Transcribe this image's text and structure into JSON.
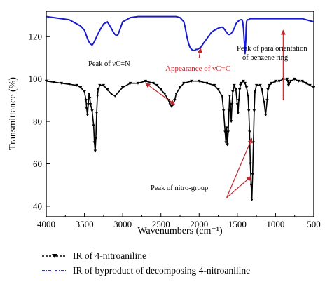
{
  "chart_data": {
    "type": "line",
    "title": "",
    "xlabel": "Wavenumbers (cm⁻¹)",
    "ylabel": "Transmittance (%)",
    "xlim": [
      4000,
      500
    ],
    "ylim": [
      35,
      132
    ],
    "x_reversed": true,
    "x_ticks": [
      4000,
      3500,
      3000,
      2500,
      2000,
      1500,
      1000,
      500
    ],
    "y_ticks": [
      40,
      60,
      80,
      100,
      120
    ],
    "grid": false,
    "legend_placement": "bottom",
    "series": [
      {
        "name": "IR of 4-nitroaniline",
        "color": "#000000",
        "marker": "triangle-down",
        "x": [
          4000,
          3900,
          3800,
          3700,
          3600,
          3550,
          3500,
          3480,
          3470,
          3460,
          3450,
          3440,
          3430,
          3420,
          3400,
          3380,
          3370,
          3360,
          3350,
          3340,
          3330,
          3320,
          3300,
          3250,
          3200,
          3150,
          3100,
          3000,
          2900,
          2800,
          2700,
          2600,
          2550,
          2500,
          2450,
          2400,
          2380,
          2360,
          2340,
          2320,
          2300,
          2250,
          2200,
          2100,
          2000,
          1900,
          1800,
          1750,
          1700,
          1680,
          1660,
          1650,
          1640,
          1630,
          1620,
          1610,
          1600,
          1590,
          1580,
          1570,
          1560,
          1540,
          1520,
          1500,
          1490,
          1480,
          1470,
          1460,
          1450,
          1420,
          1400,
          1380,
          1360,
          1350,
          1340,
          1330,
          1320,
          1310,
          1300,
          1290,
          1280,
          1270,
          1250,
          1200,
          1180,
          1150,
          1130,
          1110,
          1100,
          1080,
          1050,
          1000,
          950,
          900,
          850,
          840,
          830,
          820,
          800,
          750,
          700,
          650,
          600,
          550,
          500
        ],
        "y": [
          99,
          98.5,
          98,
          97.5,
          97,
          96,
          94,
          90,
          86,
          83,
          88,
          93,
          91,
          88,
          85,
          78,
          70,
          66,
          72,
          84,
          92,
          95,
          97,
          97,
          95,
          93,
          92,
          96,
          98,
          98,
          99,
          98,
          97,
          95,
          93,
          90,
          88,
          87,
          88,
          90,
          93,
          96,
          98,
          99,
          99,
          98,
          97,
          95,
          92,
          85,
          75,
          70,
          77,
          69,
          75,
          85,
          92,
          88,
          80,
          88,
          94,
          97,
          95,
          88,
          84,
          90,
          95,
          97,
          98,
          99,
          98,
          96,
          92,
          85,
          75,
          60,
          50,
          43,
          55,
          70,
          85,
          94,
          97,
          97,
          95,
          89,
          83,
          90,
          95,
          97,
          98,
          99,
          99,
          100,
          100,
          99,
          97,
          98,
          99,
          100,
          99,
          99,
          98,
          97,
          96
        ]
      },
      {
        "name": "IR of byproduct of decomposing 4-nitroaniline",
        "color": "#1a1ad0",
        "marker": "none",
        "x": [
          4000,
          3900,
          3800,
          3700,
          3650,
          3600,
          3550,
          3500,
          3480,
          3460,
          3440,
          3420,
          3400,
          3380,
          3360,
          3340,
          3300,
          3250,
          3200,
          3150,
          3120,
          3100,
          3080,
          3060,
          3030,
          3000,
          2900,
          2800,
          2700,
          2600,
          2500,
          2400,
          2300,
          2250,
          2200,
          2180,
          2160,
          2140,
          2120,
          2100,
          2080,
          2060,
          2040,
          2020,
          2000,
          1980,
          1960,
          1940,
          1920,
          1900,
          1880,
          1860,
          1840,
          1800,
          1750,
          1700,
          1680,
          1660,
          1640,
          1620,
          1600,
          1580,
          1560,
          1540,
          1520,
          1500,
          1480,
          1460,
          1440,
          1430,
          1420,
          1410,
          1400,
          1390,
          1385,
          1380,
          1370,
          1360,
          1350,
          1340,
          1300,
          1250,
          1200,
          1150,
          1100,
          1050,
          1000,
          950,
          900,
          850,
          800,
          750,
          700,
          650,
          600,
          550,
          500
        ],
        "y": [
          129.5,
          129,
          128.5,
          128,
          127,
          126,
          125,
          123,
          121,
          119,
          117.5,
          116.5,
          116,
          117,
          118.5,
          120,
          123,
          126,
          127,
          124,
          122,
          121,
          120.5,
          121,
          124,
          127,
          129,
          129.5,
          129.5,
          129.5,
          129.5,
          129.5,
          129.5,
          129,
          127,
          124,
          120,
          117,
          115,
          114,
          113.5,
          113.5,
          114,
          114,
          114.5,
          115,
          116,
          117,
          118,
          119,
          120,
          121,
          122,
          123,
          124,
          124.5,
          124,
          123,
          122,
          121,
          121,
          121.5,
          122.5,
          124,
          126,
          127,
          127.5,
          128,
          128,
          127,
          124,
          118,
          112,
          118,
          124,
          127,
          128,
          128,
          128,
          128.5,
          128.5,
          128.5,
          128.5,
          128.5,
          128.5,
          128.5,
          128.5,
          128.5,
          128.5,
          128.5,
          128.5,
          128.5,
          128.5,
          128.5,
          128,
          127.5,
          127
        ]
      }
    ],
    "annotations": [
      {
        "text": "Peak of νC=N",
        "color": "#000000"
      },
      {
        "text": "Appearance of νC=C",
        "color": "#c0272d"
      },
      {
        "text": "Peak of para orientation",
        "color": "#000000"
      },
      {
        "text": "of benzene ring",
        "color": "#000000"
      },
      {
        "text": "Peak of nitro-group",
        "color": "#000000"
      }
    ],
    "arrow_color": "#c0272d"
  }
}
